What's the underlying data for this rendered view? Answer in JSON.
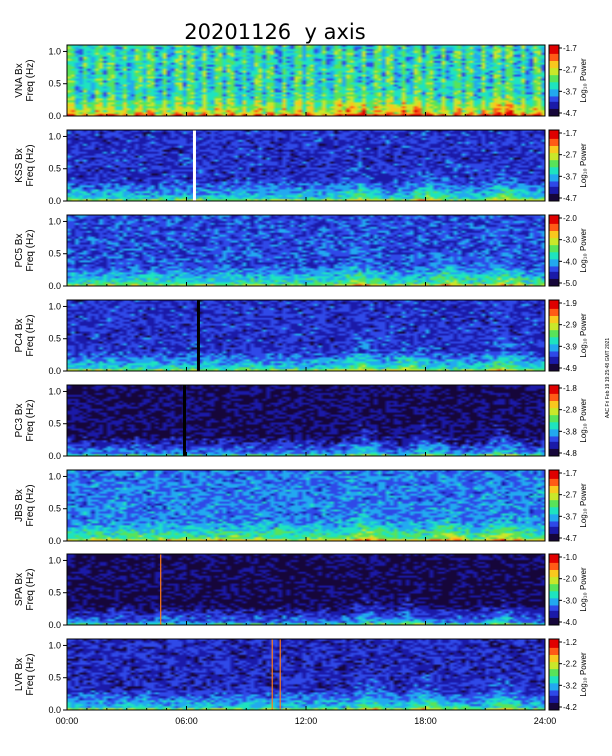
{
  "chart_data": {
    "type": "heatmap",
    "title": "20201126  y axis",
    "colorbar_label": "Log₁₀ Power",
    "x_ticks": [
      "00:00",
      "06:00",
      "12:00",
      "18:00",
      "24:00"
    ],
    "x_range_hours": [
      0,
      24
    ],
    "y_ticks": [
      "0.0",
      "0.5",
      "1.0"
    ],
    "y_range_hz": [
      0,
      1.1
    ],
    "credit": "AAC Fri Feb 19 19:25:48 GMT 2021",
    "colormap": [
      "#16063a",
      "#1b1aa8",
      "#2f49e8",
      "#22a9f0",
      "#1ee3c0",
      "#58e35a",
      "#c9e72a",
      "#f9c81e",
      "#ff5a16",
      "#e00000"
    ],
    "panels": [
      {
        "station": "VNA Bx",
        "ylabel": "VNA Bx\nFreq (Hz)",
        "cbar_ticks": [
          "-1.7",
          "-2.7",
          "-3.7",
          "-4.7"
        ],
        "base_level": 0.42,
        "striped": true
      },
      {
        "station": "KSS Bx",
        "ylabel": "KSS Bx\nFreq (Hz)",
        "cbar_ticks": [
          "-1.7",
          "-2.7",
          "-3.7",
          "-4.7"
        ],
        "base_level": 0.2,
        "gap_hours": [
          6.4
        ]
      },
      {
        "station": "PC5 Bx",
        "ylabel": "PC5 Bx\nFreq (Hz)",
        "cbar_ticks": [
          "-2.0",
          "-3.0",
          "-4.0",
          "-5.0"
        ],
        "base_level": 0.24
      },
      {
        "station": "PC4 Bx",
        "ylabel": "PC4 Bx\nFreq (Hz)",
        "cbar_ticks": [
          "-1.9",
          "-2.9",
          "-3.9",
          "-4.9"
        ],
        "base_level": 0.2,
        "gap_hours": [
          6.6
        ]
      },
      {
        "station": "PC3 Bx",
        "ylabel": "PC3 Bx\nFreq (Hz)",
        "cbar_ticks": [
          "-1.8",
          "-2.8",
          "-3.8",
          "-4.8"
        ],
        "base_level": 0.08,
        "gap_hours": [
          5.9
        ]
      },
      {
        "station": "JBS Bx",
        "ylabel": "JBS Bx\nFreq (Hz)",
        "cbar_ticks": [
          "-1.7",
          "-2.7",
          "-3.7",
          "-4.7"
        ],
        "base_level": 0.3
      },
      {
        "station": "SPA Bx",
        "ylabel": "SPA Bx\nFreq (Hz)",
        "cbar_ticks": [
          "-1.0",
          "-2.0",
          "-3.0",
          "-4.0"
        ],
        "base_level": 0.06,
        "spike_hours": [
          4.7
        ]
      },
      {
        "station": "LVR Bx",
        "ylabel": "LVR Bx\nFreq (Hz)",
        "cbar_ticks": [
          "-1.2",
          "-2.2",
          "-3.2",
          "-4.2"
        ],
        "base_level": 0.18,
        "spike_hours": [
          10.3,
          10.7
        ]
      }
    ]
  }
}
